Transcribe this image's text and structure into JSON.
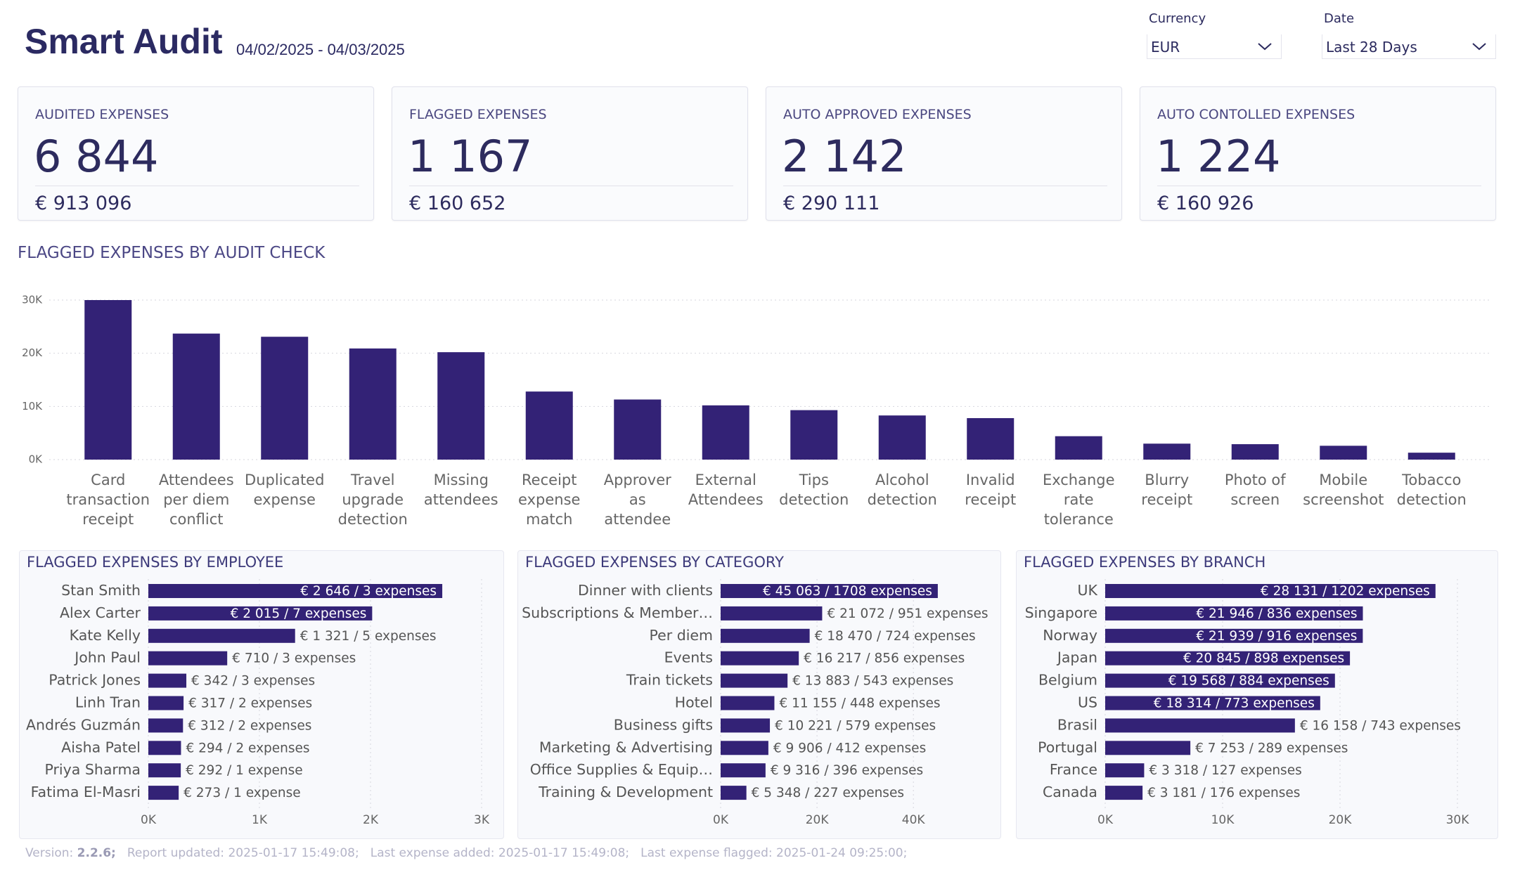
{
  "header": {
    "title": "Smart Audit",
    "date_range": "04/02/2025 - 04/03/2025"
  },
  "filters": [
    {
      "label": "Currency",
      "value": "EUR"
    },
    {
      "label": "Date",
      "value": "Last 28 Days"
    }
  ],
  "kpis": [
    {
      "label": "AUDITED EXPENSES",
      "value": "6 844",
      "amount": "€ 913 096"
    },
    {
      "label": "FLAGGED EXPENSES",
      "value": "1 167",
      "amount": "€ 160 652"
    },
    {
      "label": "AUTO APPROVED EXPENSES",
      "value": "2 142",
      "amount": "€ 290 111"
    },
    {
      "label": "AUTO CONTOLLED EXPENSES",
      "value": "1 224",
      "amount": "€ 160 926"
    }
  ],
  "chart_data": [
    {
      "type": "bar",
      "title": "FLAGGED EXPENSES BY AUDIT CHECK",
      "categories": [
        "Card transaction receipt",
        "Attendees per diem conflict",
        "Duplicated expense",
        "Travel upgrade detection",
        "Missing attendees",
        "Receipt expense match",
        "Approver as attendee",
        "External Attendees",
        "Tips detection",
        "Alcohol detection",
        "Invalid receipt",
        "Exchange rate tolerance",
        "Blurry receipt",
        "Photo of screen",
        "Mobile screenshot",
        "Tobacco detection"
      ],
      "values": [
        30000,
        23700,
        23100,
        20900,
        20200,
        12800,
        11300,
        10200,
        9300,
        8300,
        7800,
        4400,
        3000,
        2900,
        2600,
        1300
      ],
      "color": "#332276",
      "ylim": [
        0,
        30000
      ],
      "yticks": [
        {
          "value": 0,
          "label": "0K"
        },
        {
          "value": 10000,
          "label": "10K"
        },
        {
          "value": 20000,
          "label": "20K"
        },
        {
          "value": 30000,
          "label": "30K"
        }
      ],
      "grid": true
    },
    {
      "type": "hbar",
      "title": "FLAGGED EXPENSES BY EMPLOYEE",
      "categories": [
        "Stan Smith",
        "Alex Carter",
        "Kate Kelly",
        "John Paul",
        "Patrick Jones",
        "Linh Tran",
        "Andrés Guzmán",
        "Aisha Patel",
        "Priya Sharma",
        "Fatima El-Masri"
      ],
      "values": [
        2646,
        2015,
        1321,
        710,
        342,
        317,
        312,
        294,
        292,
        273
      ],
      "value_labels": [
        "€ 2 646 / 3 expenses",
        "€ 2 015 / 7 expenses",
        "€ 1 321 / 5 expenses",
        "€ 710 / 3 expenses",
        "€ 342 / 3 expenses",
        "€ 317 / 2 expenses",
        "€ 312 / 2 expenses",
        "€ 294 / 2 expenses",
        "€ 292 / 1 expense",
        "€ 273 / 1 expense"
      ],
      "color": "#332276",
      "xlim": [
        0,
        3000
      ],
      "xticks": [
        {
          "value": 0,
          "label": "0K"
        },
        {
          "value": 1000,
          "label": "1K"
        },
        {
          "value": 2000,
          "label": "2K"
        },
        {
          "value": 3000,
          "label": "3K"
        }
      ],
      "grid": true
    },
    {
      "type": "hbar",
      "title": "FLAGGED EXPENSES BY CATEGORY",
      "categories": [
        "Dinner with clients",
        "Subscriptions & Member…",
        "Per diem",
        "Events",
        "Train tickets",
        "Hotel",
        "Business gifts",
        "Marketing & Advertising",
        "Office Supplies & Equip…",
        "Training & Development"
      ],
      "values": [
        45063,
        21072,
        18470,
        16217,
        13883,
        11155,
        10221,
        9906,
        9316,
        5348
      ],
      "value_labels": [
        "€ 45 063 / 1708 expenses",
        "€ 21 072 / 951 expenses",
        "€ 18 470 / 724 expenses",
        "€ 16 217 / 856 expenses",
        "€ 13 883 / 543 expenses",
        "€ 11 155 / 448 expenses",
        "€ 10 221 / 579 expenses",
        "€ 9 906 / 412 expenses",
        "€ 9 316 / 396 expenses",
        "€ 5 348 / 227 expenses"
      ],
      "color": "#332276",
      "xlim": [
        0,
        55000
      ],
      "xticks": [
        {
          "value": 0,
          "label": "0K"
        },
        {
          "value": 20000,
          "label": "20K"
        },
        {
          "value": 40000,
          "label": "40K"
        }
      ],
      "grid": true
    },
    {
      "type": "hbar",
      "title": "FLAGGED EXPENSES BY BRANCH",
      "categories": [
        "UK",
        "Singapore",
        "Norway",
        "Japan",
        "Belgium",
        "US",
        "Brasil",
        "Portugal",
        "France",
        "Canada"
      ],
      "values": [
        28131,
        21946,
        21939,
        20845,
        19568,
        18314,
        16158,
        7253,
        3318,
        3181
      ],
      "value_labels": [
        "€ 28 131 / 1202 expenses",
        "€ 21 946 / 836 expenses",
        "€ 21 939 / 916 expenses",
        "€ 20 845 / 898 expenses",
        "€ 19 568 / 884 expenses",
        "€ 18 314 / 773 expenses",
        "€ 16 158 / 743 expenses",
        "€ 7 253 / 289 expenses",
        "€ 3 318 / 127 expenses",
        "€ 3 181 / 176 expenses"
      ],
      "color": "#332276",
      "xlim": [
        0,
        30000
      ],
      "xticks": [
        {
          "value": 0,
          "label": "0K"
        },
        {
          "value": 10000,
          "label": "10K"
        },
        {
          "value": 20000,
          "label": "20K"
        },
        {
          "value": 30000,
          "label": "30K"
        }
      ],
      "grid": true
    }
  ],
  "footer": {
    "version_label": "Version:",
    "version": "2.2.6;",
    "items": [
      "Report updated: 2025-01-17 15:49:08;",
      "Last expense added: 2025-01-17 15:49:08;",
      "Last expense flagged: 2025-01-24 09:25:00;"
    ]
  }
}
